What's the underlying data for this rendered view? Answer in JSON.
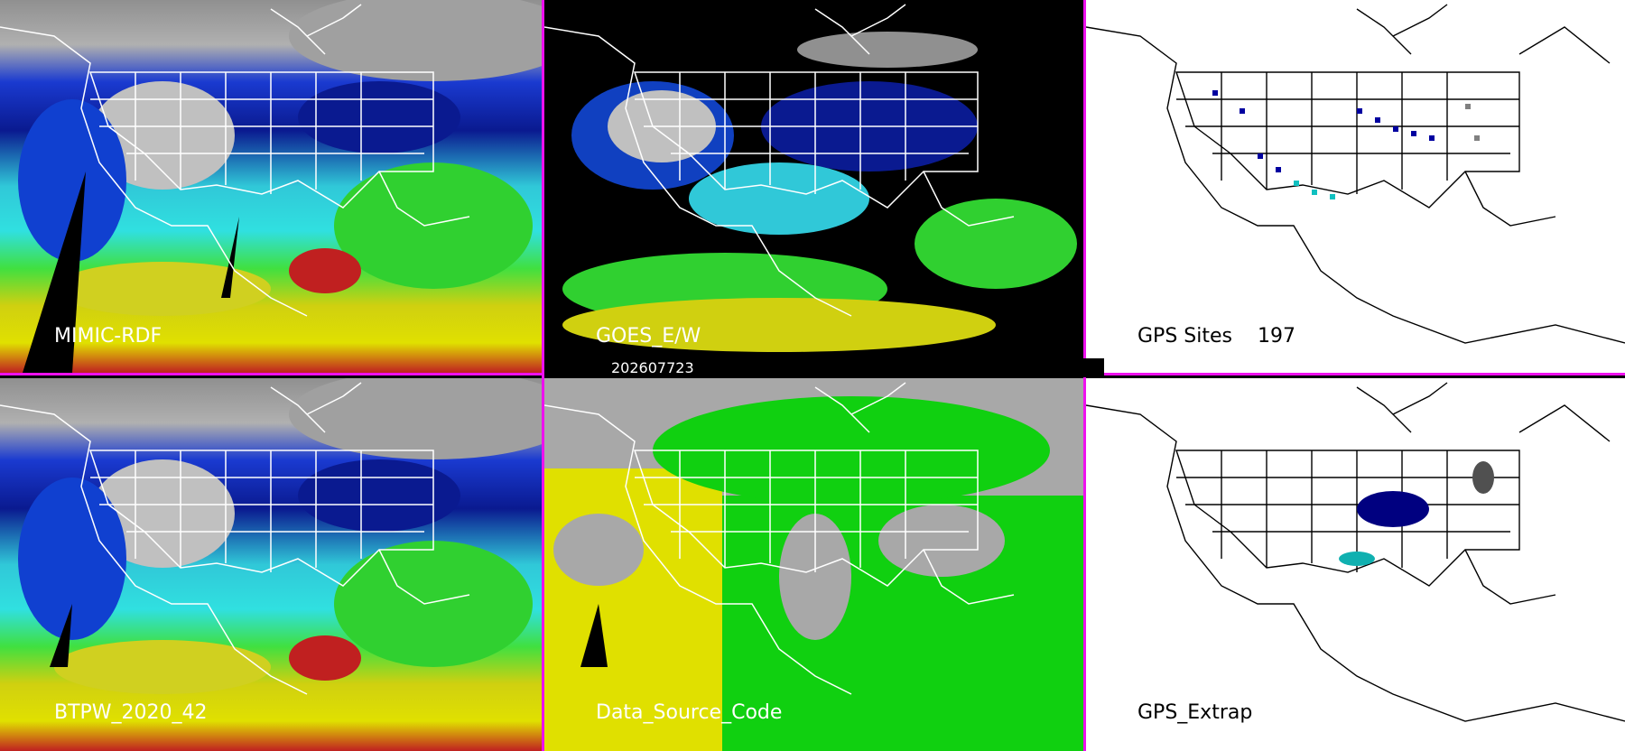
{
  "panels": {
    "top_left": {
      "label": "MIMIC-RDF"
    },
    "top_middle": {
      "label": "GOES_E/W"
    },
    "top_right": {
      "label": "GPS Sites    197"
    },
    "bottom_left": {
      "label": "BTPW_2020_42"
    },
    "bottom_middle": {
      "label": "Data_Source_Code"
    },
    "bottom_right": {
      "label": "GPS_Extrap"
    }
  },
  "date_stamp": "202607723",
  "colors": {
    "divider": "#ee10ee",
    "palette": [
      "#808080",
      "#0000a0",
      "#1040e0",
      "#10d0e0",
      "#10e010",
      "#e0e000",
      "#d02020"
    ]
  }
}
